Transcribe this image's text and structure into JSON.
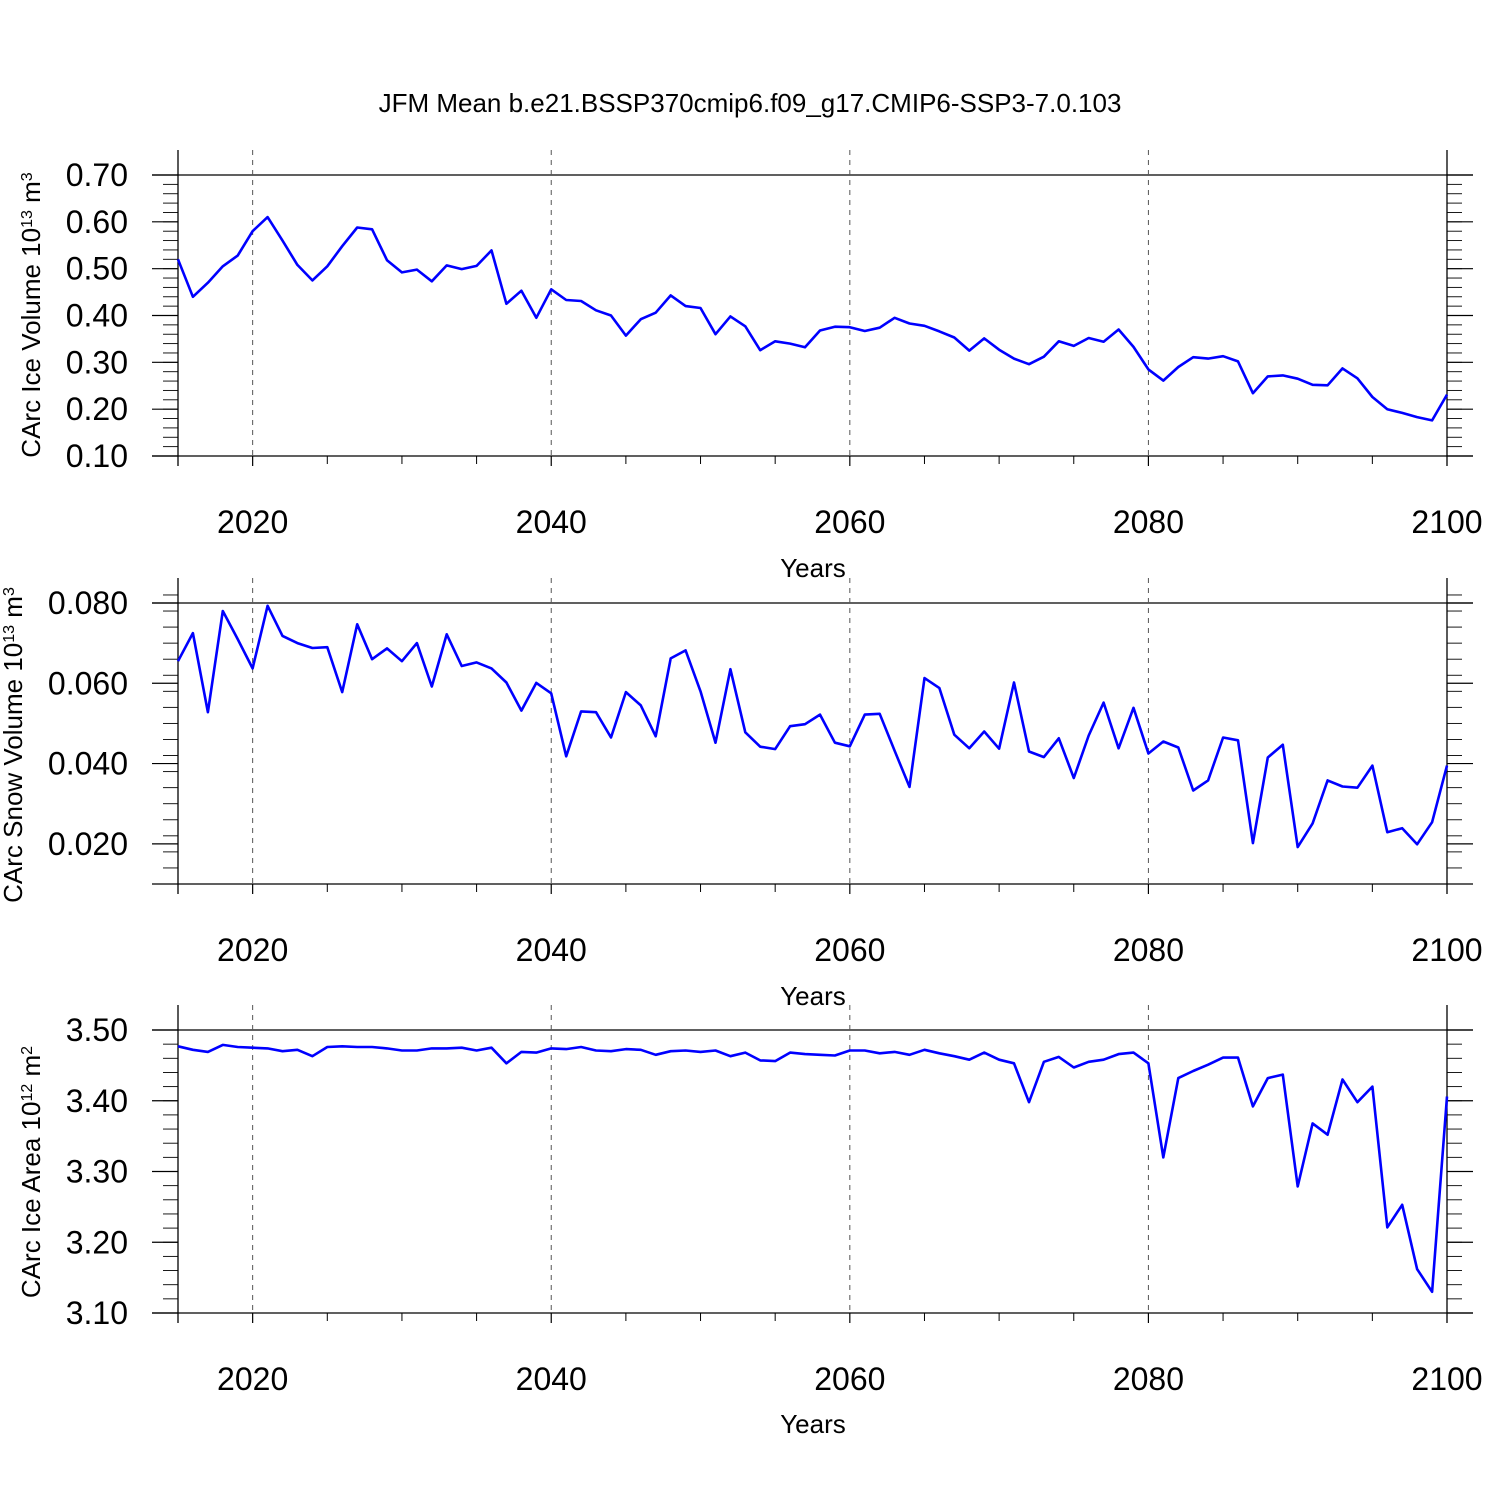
{
  "figure": {
    "title": "JFM Mean b.e21.BSSP370cmip6.f09_g17.CMIP6-SSP3-7.0.103"
  },
  "chart_data": [
    {
      "type": "line",
      "series_name": "CArc Ice Volume",
      "ylabel_main": "CArc Ice Volume 10",
      "ylabel_exp": "13",
      "ylabel_unit": " m",
      "ylabel_unit_exp": "3",
      "xlabel": "Years",
      "xlim": [
        2015,
        2100
      ],
      "ylim": [
        0.1,
        0.7
      ],
      "xticks": [
        2020,
        2040,
        2060,
        2080,
        2100
      ],
      "xtick_labels": [
        "2020",
        "2040",
        "2060",
        "2080",
        "2100"
      ],
      "yticks": [
        0.1,
        0.2,
        0.3,
        0.4,
        0.5,
        0.6,
        0.7
      ],
      "ytick_labels": [
        "0.10",
        "0.20",
        "0.30",
        "0.40",
        "0.50",
        "0.60",
        "0.70"
      ],
      "yminor_step": 0.02,
      "color": "#0000ff",
      "x_start": 2015,
      "values": [
        0.52,
        0.44,
        0.47,
        0.505,
        0.528,
        0.58,
        0.61,
        0.56,
        0.508,
        0.475,
        0.505,
        0.548,
        0.588,
        0.584,
        0.518,
        0.492,
        0.498,
        0.473,
        0.507,
        0.499,
        0.506,
        0.539,
        0.425,
        0.453,
        0.395,
        0.456,
        0.433,
        0.431,
        0.411,
        0.4,
        0.357,
        0.392,
        0.406,
        0.443,
        0.42,
        0.416,
        0.36,
        0.398,
        0.377,
        0.326,
        0.345,
        0.34,
        0.332,
        0.368,
        0.376,
        0.375,
        0.367,
        0.374,
        0.395,
        0.383,
        0.378,
        0.366,
        0.353,
        0.325,
        0.351,
        0.327,
        0.308,
        0.296,
        0.312,
        0.345,
        0.335,
        0.352,
        0.344,
        0.37,
        0.333,
        0.285,
        0.261,
        0.29,
        0.311,
        0.308,
        0.313,
        0.302,
        0.234,
        0.27,
        0.272,
        0.265,
        0.252,
        0.251,
        0.287,
        0.266,
        0.226,
        0.2,
        0.192,
        0.183,
        0.176,
        0.231
      ]
    },
    {
      "type": "line",
      "series_name": "CArc Snow Volume",
      "ylabel_main": "CArc Snow Volume 10",
      "ylabel_exp": "13",
      "ylabel_unit": " m",
      "ylabel_unit_exp": "3",
      "xlabel": "Years",
      "xlim": [
        2015,
        2100
      ],
      "ylim": [
        0.01,
        0.08
      ],
      "xticks": [
        2020,
        2040,
        2060,
        2080,
        2100
      ],
      "xtick_labels": [
        "2020",
        "2040",
        "2060",
        "2080",
        "2100"
      ],
      "yticks": [
        0.02,
        0.04,
        0.06,
        0.08
      ],
      "ytick_labels": [
        "0.020",
        "0.040",
        "0.060",
        "0.080"
      ],
      "yminor_step": 0.004,
      "color": "#0000ff",
      "x_start": 2015,
      "values": [
        0.0655,
        0.0725,
        0.0528,
        0.078,
        0.071,
        0.0637,
        0.0793,
        0.0718,
        0.07,
        0.0688,
        0.069,
        0.0578,
        0.0747,
        0.066,
        0.0687,
        0.0655,
        0.07,
        0.0592,
        0.0722,
        0.0643,
        0.0652,
        0.0637,
        0.0602,
        0.0532,
        0.0601,
        0.0575,
        0.0418,
        0.053,
        0.0528,
        0.0465,
        0.0578,
        0.0545,
        0.0468,
        0.0662,
        0.0682,
        0.058,
        0.0452,
        0.0635,
        0.0478,
        0.0442,
        0.0436,
        0.0493,
        0.0498,
        0.0522,
        0.0452,
        0.0443,
        0.0522,
        0.0524,
        0.0432,
        0.0342,
        0.0613,
        0.0588,
        0.0472,
        0.0438,
        0.048,
        0.0437,
        0.0602,
        0.043,
        0.0416,
        0.0463,
        0.0364,
        0.047,
        0.0552,
        0.0438,
        0.0539,
        0.0425,
        0.0455,
        0.044,
        0.0333,
        0.0358,
        0.0465,
        0.0458,
        0.0202,
        0.0415,
        0.0447,
        0.0192,
        0.0251,
        0.0358,
        0.0343,
        0.034,
        0.0395,
        0.0229,
        0.0239,
        0.0199,
        0.0254,
        0.0395
      ]
    },
    {
      "type": "line",
      "series_name": "CArc Ice Area",
      "ylabel_main": "CArc Ice Area 10",
      "ylabel_exp": "12",
      "ylabel_unit": " m",
      "ylabel_unit_exp": "2",
      "xlabel": "Years",
      "xlim": [
        2015,
        2100
      ],
      "ylim": [
        3.1,
        3.5
      ],
      "xticks": [
        2020,
        2040,
        2060,
        2080,
        2100
      ],
      "xtick_labels": [
        "2020",
        "2040",
        "2060",
        "2080",
        "2100"
      ],
      "yticks": [
        3.1,
        3.2,
        3.3,
        3.4,
        3.5
      ],
      "ytick_labels": [
        "3.10",
        "3.20",
        "3.30",
        "3.40",
        "3.50"
      ],
      "yminor_step": 0.02,
      "color": "#0000ff",
      "x_start": 2015,
      "values": [
        3.477,
        3.472,
        3.469,
        3.479,
        3.476,
        3.475,
        3.474,
        3.47,
        3.472,
        3.463,
        3.476,
        3.477,
        3.476,
        3.476,
        3.474,
        3.471,
        3.471,
        3.474,
        3.474,
        3.475,
        3.471,
        3.475,
        3.453,
        3.469,
        3.468,
        3.474,
        3.473,
        3.476,
        3.471,
        3.47,
        3.473,
        3.472,
        3.465,
        3.47,
        3.471,
        3.469,
        3.471,
        3.463,
        3.468,
        3.457,
        3.456,
        3.468,
        3.466,
        3.465,
        3.464,
        3.471,
        3.471,
        3.467,
        3.469,
        3.465,
        3.472,
        3.467,
        3.463,
        3.458,
        3.468,
        3.458,
        3.453,
        3.398,
        3.455,
        3.462,
        3.447,
        3.455,
        3.458,
        3.466,
        3.468,
        3.453,
        3.32,
        3.432,
        3.442,
        3.451,
        3.461,
        3.461,
        3.392,
        3.432,
        3.437,
        3.279,
        3.368,
        3.352,
        3.43,
        3.398,
        3.42,
        3.221,
        3.253,
        3.162,
        3.13,
        3.406
      ]
    }
  ]
}
